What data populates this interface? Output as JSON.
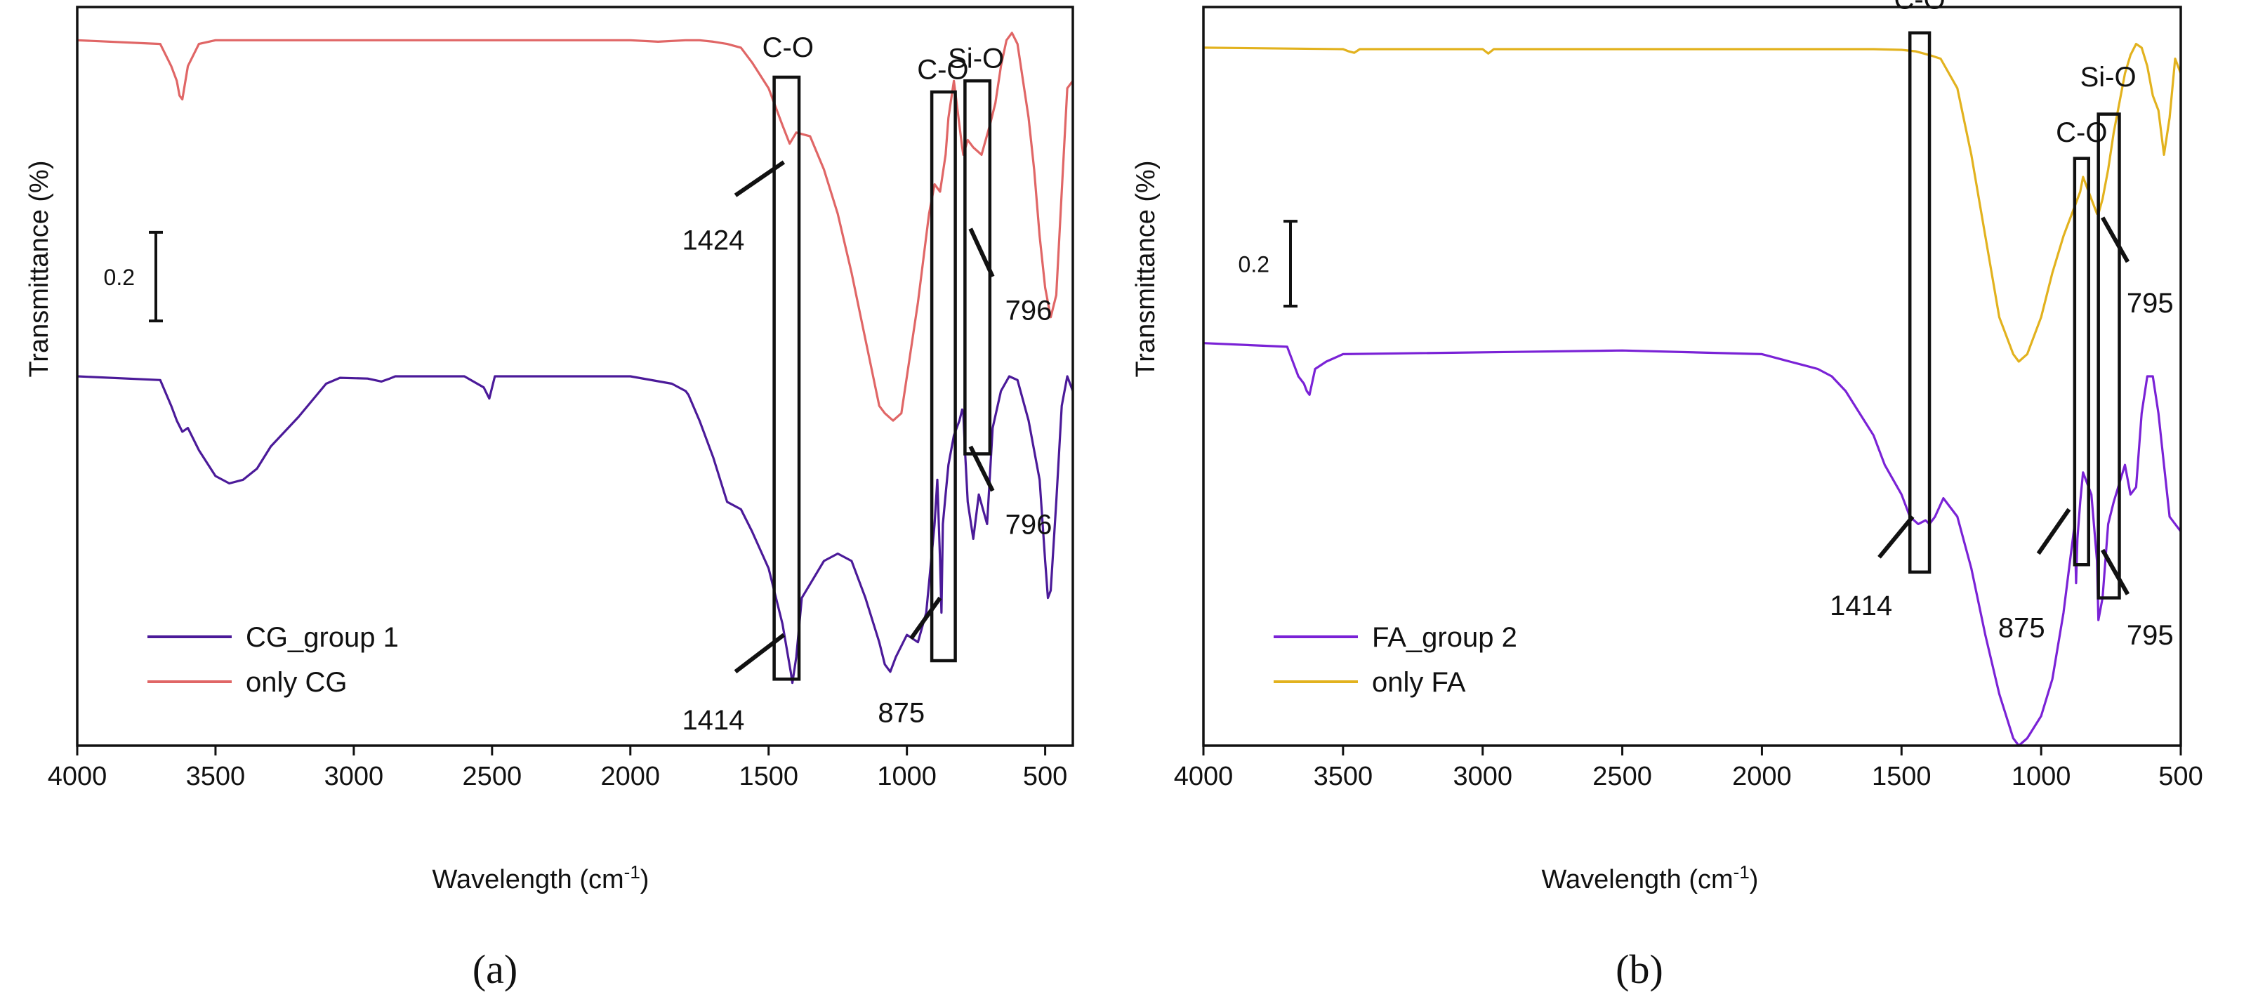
{
  "chart_data": [
    {
      "type": "line",
      "id": "a",
      "panel_label": "(a)",
      "xlabel": "Wavelength (cm",
      "xlabel_sup": "-1",
      "xlabel_end": ")",
      "ylabel": "Transmittance (%)",
      "xlim": [
        4000,
        400
      ],
      "ylim": [
        0,
        1
      ],
      "xticks": [
        4000,
        3500,
        3000,
        2500,
        2000,
        1500,
        1000,
        500
      ],
      "scale_bar_label": "0.2",
      "scale_bar": {
        "y_from": 0.695,
        "y_to": 0.575
      },
      "legend_position": "bottom-left",
      "series": [
        {
          "name": "CG_group 1",
          "color": "#4b1a99",
          "x": [
            4000,
            3700,
            3660,
            3640,
            3620,
            3600,
            3560,
            3500,
            3450,
            3400,
            3350,
            3300,
            3200,
            3100,
            3050,
            2950,
            2900,
            2870,
            2850,
            2600,
            2530,
            2510,
            2490,
            2000,
            1850,
            1800,
            1790,
            1750,
            1700,
            1650,
            1600,
            1560,
            1500,
            1450,
            1420,
            1414,
            1400,
            1380,
            1300,
            1250,
            1200,
            1150,
            1100,
            1080,
            1060,
            1040,
            1000,
            960,
            930,
            900,
            890,
            880,
            875,
            870,
            860,
            850,
            830,
            810,
            800,
            796,
            790,
            780,
            760,
            740,
            710,
            690,
            660,
            630,
            600,
            560,
            520,
            500,
            490,
            480,
            460,
            440,
            420,
            400
          ],
          "y": [
            0.5,
            0.495,
            0.46,
            0.44,
            0.425,
            0.43,
            0.4,
            0.365,
            0.355,
            0.36,
            0.375,
            0.405,
            0.445,
            0.49,
            0.498,
            0.497,
            0.493,
            0.497,
            0.5,
            0.5,
            0.485,
            0.47,
            0.5,
            0.5,
            0.49,
            0.48,
            0.475,
            0.44,
            0.39,
            0.33,
            0.32,
            0.29,
            0.24,
            0.165,
            0.1,
            0.085,
            0.12,
            0.2,
            0.25,
            0.26,
            0.25,
            0.2,
            0.14,
            0.11,
            0.1,
            0.12,
            0.15,
            0.14,
            0.18,
            0.3,
            0.36,
            0.25,
            0.18,
            0.3,
            0.34,
            0.38,
            0.42,
            0.44,
            0.455,
            0.45,
            0.4,
            0.33,
            0.28,
            0.34,
            0.3,
            0.43,
            0.48,
            0.5,
            0.495,
            0.44,
            0.36,
            0.25,
            0.2,
            0.21,
            0.33,
            0.46,
            0.5,
            0.48
          ]
        },
        {
          "name": "only CG",
          "color": "#e06666",
          "x": [
            4000,
            3700,
            3660,
            3640,
            3630,
            3620,
            3600,
            3560,
            3500,
            2000,
            1900,
            1800,
            1750,
            1700,
            1650,
            1600,
            1560,
            1500,
            1450,
            1424,
            1400,
            1350,
            1300,
            1250,
            1200,
            1150,
            1100,
            1080,
            1050,
            1020,
            1000,
            960,
            920,
            900,
            880,
            860,
            850,
            830,
            800,
            796,
            780,
            760,
            730,
            700,
            680,
            660,
            640,
            620,
            600,
            580,
            560,
            540,
            520,
            500,
            480,
            460,
            440,
            420,
            400
          ],
          "y": [
            0.955,
            0.95,
            0.92,
            0.9,
            0.88,
            0.875,
            0.92,
            0.95,
            0.955,
            0.955,
            0.953,
            0.955,
            0.955,
            0.953,
            0.95,
            0.945,
            0.925,
            0.89,
            0.84,
            0.815,
            0.83,
            0.825,
            0.78,
            0.72,
            0.64,
            0.55,
            0.46,
            0.45,
            0.44,
            0.45,
            0.5,
            0.6,
            0.72,
            0.76,
            0.75,
            0.8,
            0.85,
            0.9,
            0.81,
            0.8,
            0.82,
            0.81,
            0.8,
            0.84,
            0.87,
            0.92,
            0.955,
            0.965,
            0.95,
            0.9,
            0.85,
            0.78,
            0.69,
            0.62,
            0.58,
            0.61,
            0.75,
            0.89,
            0.9
          ]
        }
      ],
      "annotations": [
        {
          "text": "C-O",
          "box_x": [
            1480,
            1390
          ],
          "box_y": [
            0.09,
            0.905
          ],
          "label_x": 1430,
          "label_y": 0.925
        },
        {
          "text": "C-O",
          "box_x": [
            910,
            825
          ],
          "box_y": [
            0.115,
            0.885
          ],
          "label_x": 870,
          "label_y": 0.895
        },
        {
          "text": "Si-O",
          "box_x": [
            790,
            700
          ],
          "box_y": [
            0.395,
            0.9
          ],
          "label_x": 750,
          "label_y": 0.91
        },
        {
          "text": "1424",
          "line_x": [
            1620,
            1445
          ],
          "line_y": [
            0.745,
            0.79
          ],
          "text_x": 1700,
          "text_y": 0.685
        },
        {
          "text": "796",
          "line_x": [
            770,
            690
          ],
          "line_y": [
            0.7,
            0.635
          ],
          "text_x": 560,
          "text_y": 0.59
        },
        {
          "text": "796",
          "line_x": [
            770,
            690
          ],
          "line_y": [
            0.405,
            0.345
          ],
          "text_x": 560,
          "text_y": 0.3
        },
        {
          "text": "1414",
          "line_x": [
            1620,
            1445
          ],
          "line_y": [
            0.1,
            0.15
          ],
          "text_x": 1700,
          "text_y": 0.035
        },
        {
          "text": "875",
          "line_x": [
            985,
            880
          ],
          "line_y": [
            0.145,
            0.2
          ],
          "text_x": 1020,
          "text_y": 0.045
        }
      ]
    },
    {
      "type": "line",
      "id": "b",
      "panel_label": "(b)",
      "xlabel": "Wavelength (cm",
      "xlabel_sup": "-1",
      "xlabel_end": ")",
      "ylabel": "Transmittance (%)",
      "xlim": [
        4000,
        500
      ],
      "ylim": [
        0,
        1
      ],
      "xticks": [
        4000,
        3500,
        3000,
        2500,
        2000,
        1500,
        1000,
        500
      ],
      "scale_bar_label": "0.2",
      "scale_bar": {
        "y_from": 0.71,
        "y_to": 0.595
      },
      "legend_position": "bottom-left",
      "series": [
        {
          "name": "FA_group 2",
          "color": "#7a22d6",
          "x": [
            4000,
            3700,
            3660,
            3640,
            3630,
            3620,
            3600,
            3560,
            3500,
            2500,
            2000,
            1900,
            1850,
            1800,
            1750,
            1700,
            1650,
            1600,
            1560,
            1500,
            1470,
            1440,
            1414,
            1400,
            1380,
            1350,
            1300,
            1250,
            1200,
            1150,
            1100,
            1080,
            1050,
            1000,
            960,
            920,
            900,
            880,
            875,
            870,
            860,
            850,
            820,
            800,
            795,
            780,
            760,
            740,
            700,
            680,
            660,
            640,
            620,
            600,
            580,
            560,
            540,
            520,
            500
          ],
          "y": [
            0.545,
            0.54,
            0.5,
            0.49,
            0.48,
            0.475,
            0.51,
            0.52,
            0.53,
            0.535,
            0.53,
            0.52,
            0.515,
            0.51,
            0.5,
            0.48,
            0.45,
            0.42,
            0.38,
            0.34,
            0.31,
            0.3,
            0.305,
            0.3,
            0.31,
            0.335,
            0.31,
            0.24,
            0.15,
            0.07,
            0.01,
            0.0,
            0.01,
            0.04,
            0.09,
            0.18,
            0.24,
            0.3,
            0.22,
            0.28,
            0.33,
            0.37,
            0.34,
            0.25,
            0.17,
            0.2,
            0.3,
            0.33,
            0.38,
            0.34,
            0.35,
            0.45,
            0.5,
            0.5,
            0.45,
            0.38,
            0.31,
            0.3,
            0.29
          ]
        },
        {
          "name": "only FA",
          "color": "#e2b21e",
          "x": [
            4000,
            3500,
            3480,
            3460,
            3440,
            3000,
            2980,
            2960,
            2500,
            2000,
            1600,
            1500,
            1450,
            1400,
            1360,
            1300,
            1250,
            1200,
            1150,
            1100,
            1080,
            1050,
            1000,
            960,
            920,
            900,
            880,
            860,
            850,
            820,
            800,
            795,
            780,
            760,
            740,
            720,
            700,
            680,
            660,
            640,
            620,
            600,
            580,
            560,
            540,
            520,
            500
          ],
          "y": [
            0.945,
            0.943,
            0.94,
            0.938,
            0.943,
            0.943,
            0.937,
            0.943,
            0.943,
            0.943,
            0.943,
            0.942,
            0.94,
            0.935,
            0.93,
            0.89,
            0.8,
            0.69,
            0.58,
            0.53,
            0.52,
            0.53,
            0.58,
            0.64,
            0.69,
            0.71,
            0.73,
            0.75,
            0.77,
            0.74,
            0.72,
            0.72,
            0.74,
            0.78,
            0.83,
            0.87,
            0.91,
            0.935,
            0.95,
            0.945,
            0.92,
            0.88,
            0.86,
            0.8,
            0.85,
            0.93,
            0.91
          ]
        }
      ],
      "annotations": [
        {
          "text": "C-O",
          "box_x": [
            1470,
            1400
          ],
          "box_y": [
            0.235,
            0.965
          ],
          "label_x": 1435,
          "label_y": 0.99
        },
        {
          "text": "C-O",
          "box_x": [
            880,
            830
          ],
          "box_y": [
            0.245,
            0.795
          ],
          "label_x": 855,
          "label_y": 0.81
        },
        {
          "text": "Si-O",
          "box_x": [
            795,
            720
          ],
          "box_y": [
            0.2,
            0.855
          ],
          "label_x": 760,
          "label_y": 0.885
        },
        {
          "text": "1414",
          "line_x": [
            1580,
            1460
          ],
          "line_y": [
            0.255,
            0.31
          ],
          "text_x": 1645,
          "text_y": 0.19
        },
        {
          "text": "875",
          "line_x": [
            1010,
            900
          ],
          "line_y": [
            0.26,
            0.32
          ],
          "text_x": 1070,
          "text_y": 0.16
        },
        {
          "text": "795",
          "line_x": [
            780,
            690
          ],
          "line_y": [
            0.715,
            0.655
          ],
          "text_x": 610,
          "text_y": 0.6
        },
        {
          "text": "795",
          "line_x": [
            780,
            690
          ],
          "line_y": [
            0.265,
            0.205
          ],
          "text_x": 610,
          "text_y": 0.15
        }
      ]
    }
  ]
}
